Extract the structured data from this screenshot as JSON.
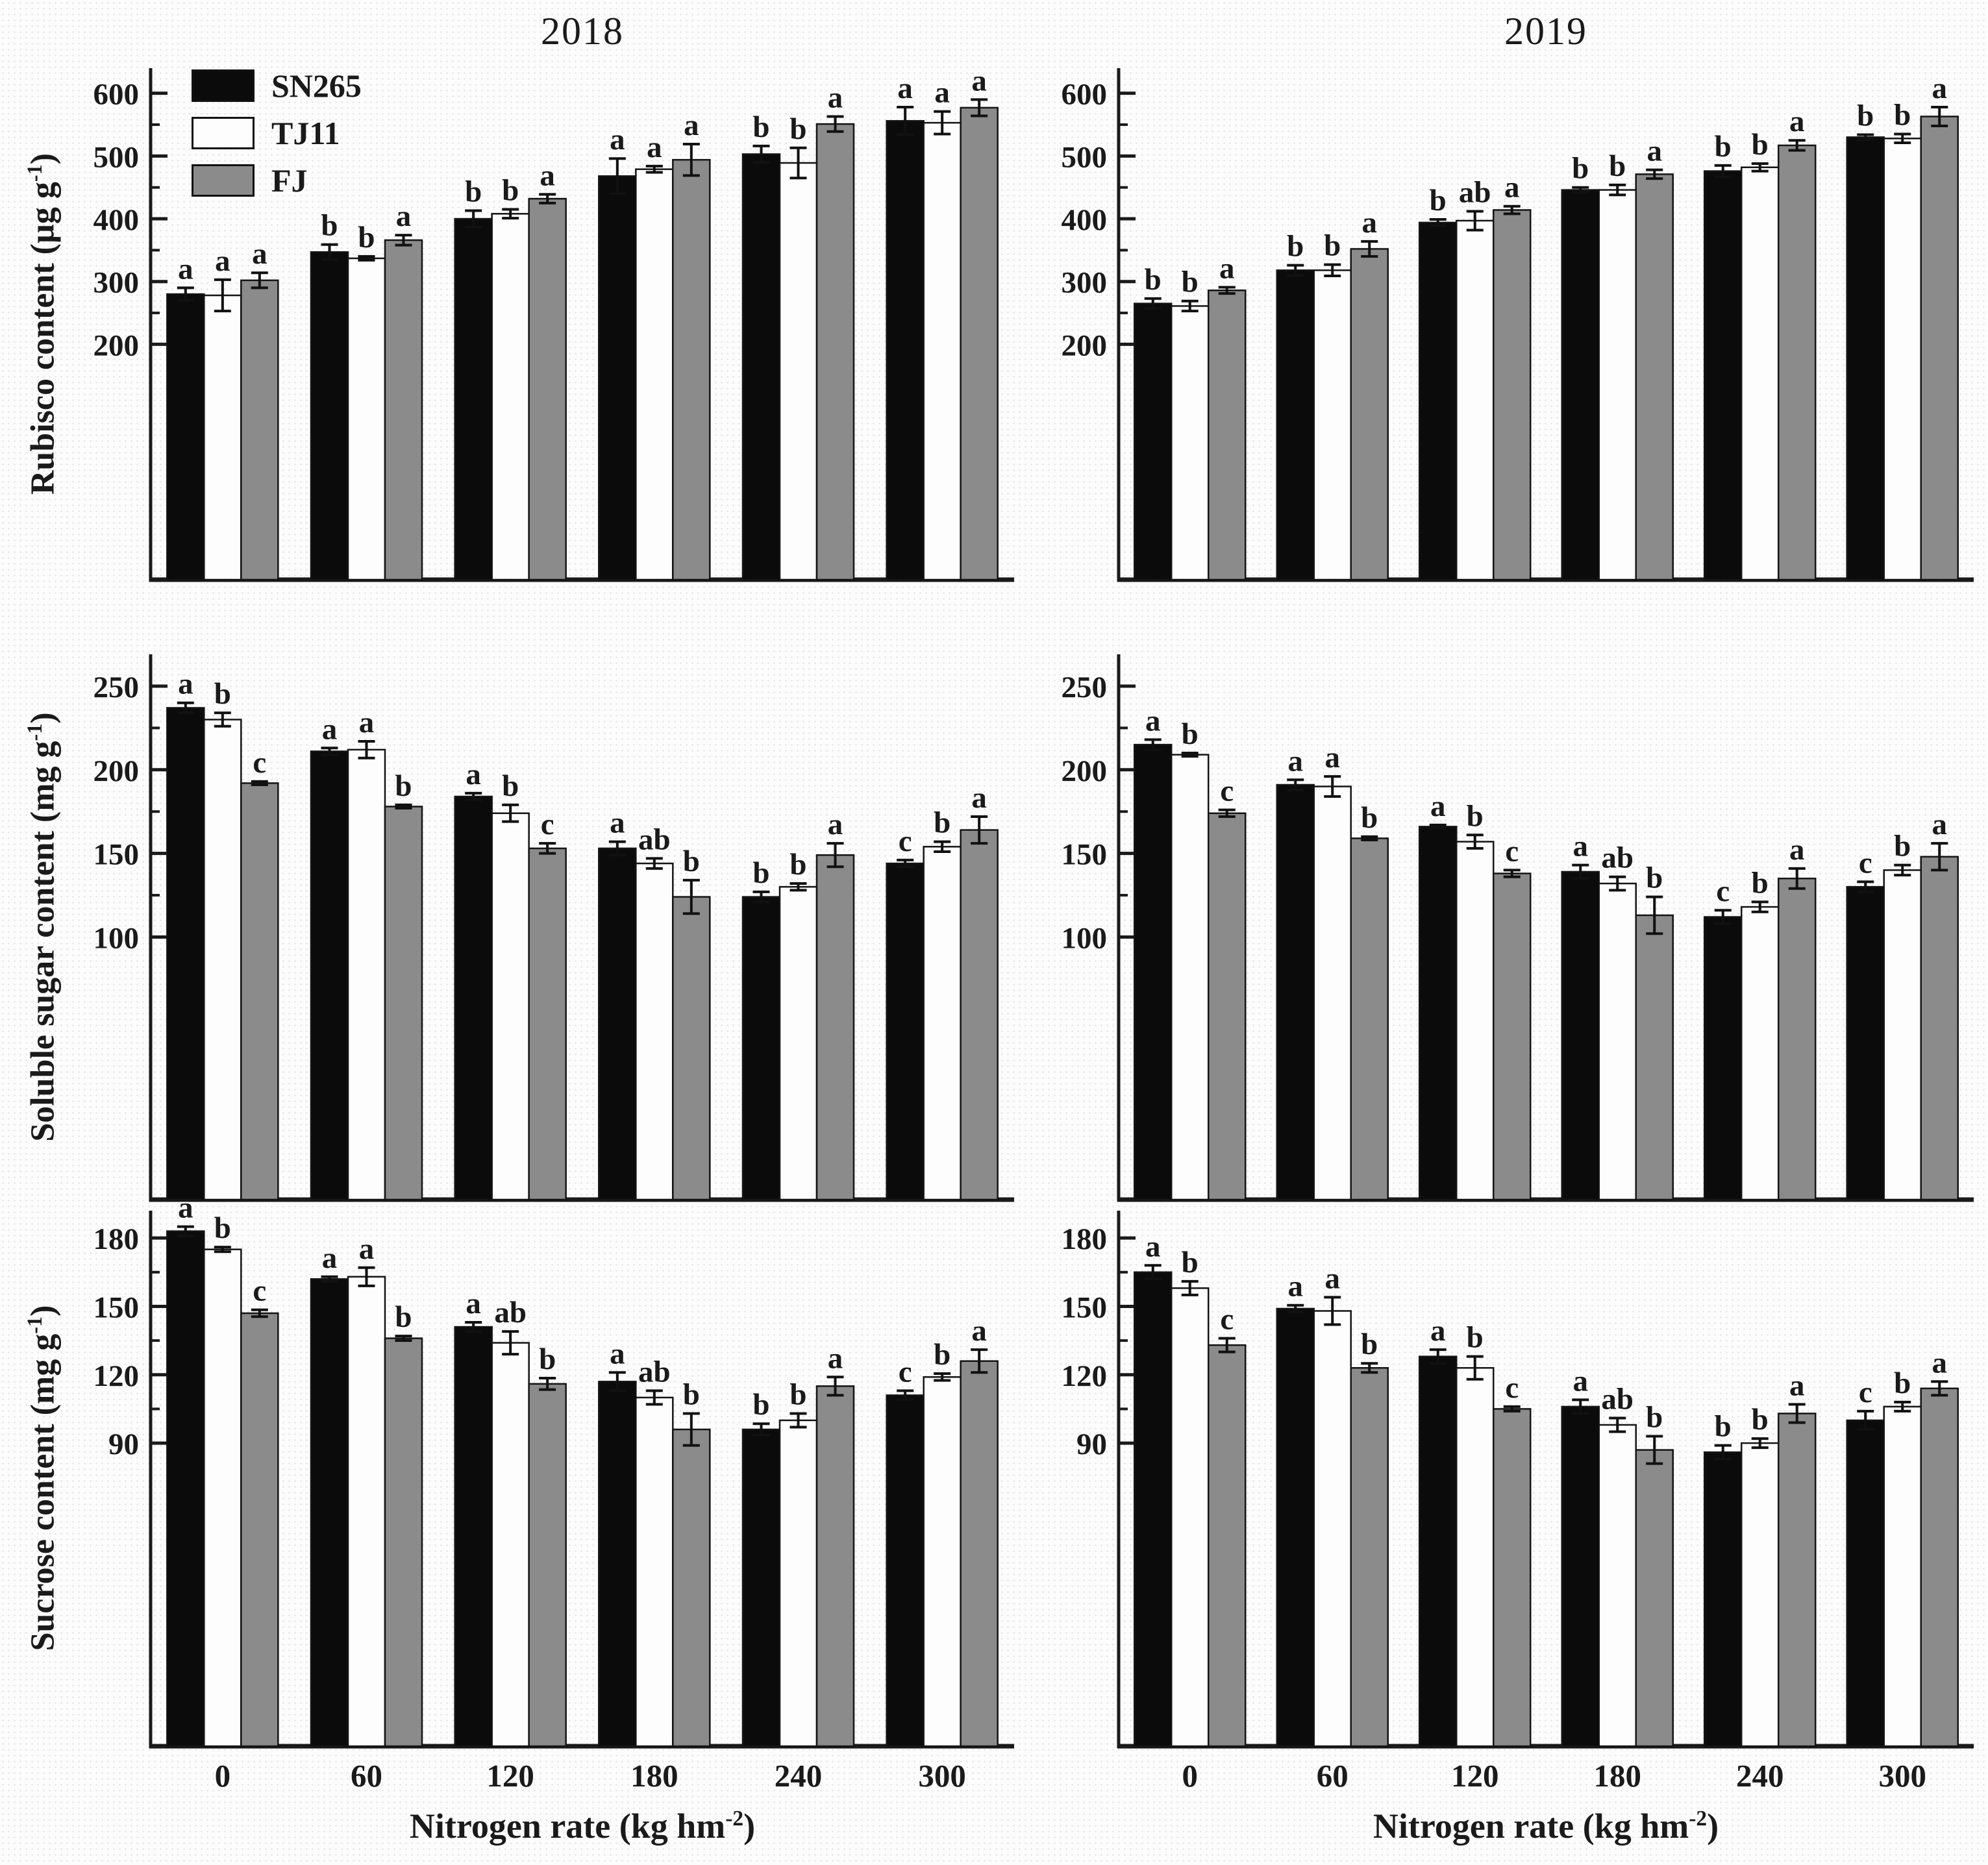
{
  "figure": {
    "titles": [
      "2018",
      "2019"
    ],
    "xlabel": {
      "pre": "Nitrogen rate (kg hm",
      "sup": "-2",
      "post": ")"
    },
    "x_categories": [
      "0",
      "60",
      "120",
      "180",
      "240",
      "300"
    ],
    "legend": [
      {
        "label": "SN265",
        "color": "#0b0b0b"
      },
      {
        "label": "TJ11",
        "color": "#fdfdfd"
      },
      {
        "label": "FJ",
        "color": "#8b8b8b"
      }
    ],
    "axis_color": "#1a1a1a",
    "background": "#fdfcfd"
  },
  "chart_data": [
    {
      "type": "bar",
      "year": "2018",
      "measure": "rubisco",
      "title": "2018",
      "ylabel": {
        "pre": "Rubisco content (µg g",
        "sup": "-1",
        "post": ")"
      },
      "categories": [
        "0",
        "60",
        "120",
        "180",
        "240",
        "300"
      ],
      "yticks": [
        200,
        300,
        400,
        500,
        600
      ],
      "yminor": [
        250,
        350,
        450,
        550
      ],
      "axis_range": [
        -175,
        640
      ],
      "series": [
        {
          "name": "SN265",
          "color": "#0b0b0b",
          "values": [
            280,
            347,
            400,
            468,
            503,
            556
          ],
          "errors": [
            10,
            12,
            13,
            28,
            13,
            22
          ],
          "letters": [
            "a",
            "b",
            "b",
            "a",
            "b",
            "a"
          ]
        },
        {
          "name": "TJ11",
          "color": "#fdfdfd",
          "values": [
            278,
            337,
            408,
            479,
            489,
            553
          ],
          "errors": [
            25,
            3,
            7,
            5,
            24,
            18
          ],
          "letters": [
            "a",
            "b",
            "b",
            "a",
            "b",
            "a"
          ]
        },
        {
          "name": "FJ",
          "color": "#8b8b8b",
          "values": [
            302,
            366,
            432,
            494,
            551,
            577
          ],
          "errors": [
            12,
            8,
            7,
            25,
            12,
            13
          ],
          "letters": [
            "a",
            "a",
            "a",
            "a",
            "a",
            "a"
          ]
        }
      ]
    },
    {
      "type": "bar",
      "year": "2019",
      "measure": "rubisco",
      "title": "2019",
      "ylabel": null,
      "categories": [
        "0",
        "60",
        "120",
        "180",
        "240",
        "300"
      ],
      "yticks": [
        200,
        300,
        400,
        500,
        600
      ],
      "yminor": [
        250,
        350,
        450,
        550
      ],
      "axis_range": [
        -175,
        640
      ],
      "series": [
        {
          "name": "SN265",
          "color": "#0b0b0b",
          "values": [
            265,
            318,
            394,
            446,
            476,
            530
          ],
          "errors": [
            8,
            8,
            5,
            4,
            9,
            4
          ],
          "letters": [
            "b",
            "b",
            "b",
            "b",
            "b",
            "b"
          ]
        },
        {
          "name": "TJ11",
          "color": "#fdfdfd",
          "values": [
            261,
            318,
            397,
            446,
            482,
            528
          ],
          "errors": [
            8,
            9,
            15,
            8,
            6,
            7
          ],
          "letters": [
            "b",
            "b",
            "ab",
            "b",
            "b",
            "b"
          ]
        },
        {
          "name": "FJ",
          "color": "#8b8b8b",
          "values": [
            286,
            352,
            414,
            471,
            517,
            563
          ],
          "errors": [
            5,
            12,
            6,
            7,
            8,
            15
          ],
          "letters": [
            "a",
            "a",
            "a",
            "a",
            "a",
            "a"
          ]
        }
      ]
    },
    {
      "type": "bar",
      "year": "2018",
      "measure": "soluble-sugar",
      "title": "2018",
      "ylabel": {
        "pre": "Soluble sugar content (mg g",
        "sup": "-1",
        "post": ")"
      },
      "categories": [
        "0",
        "60",
        "120",
        "180",
        "240",
        "300"
      ],
      "yticks": [
        100,
        150,
        200,
        250
      ],
      "yminor": [
        125,
        175,
        225
      ],
      "axis_range": [
        -57,
        269
      ],
      "series": [
        {
          "name": "SN265",
          "color": "#0b0b0b",
          "values": [
            237,
            211,
            184,
            153,
            124,
            144
          ],
          "errors": [
            3,
            2,
            2,
            4,
            3,
            2
          ],
          "letters": [
            "a",
            "a",
            "a",
            "a",
            "b",
            "c"
          ]
        },
        {
          "name": "TJ11",
          "color": "#fdfdfd",
          "values": [
            230,
            212,
            174,
            144,
            130,
            154
          ],
          "errors": [
            4,
            5,
            5,
            3,
            2,
            3
          ],
          "letters": [
            "b",
            "a",
            "b",
            "ab",
            "b",
            "b"
          ]
        },
        {
          "name": "FJ",
          "color": "#8b8b8b",
          "values": [
            192,
            178,
            153,
            124,
            149,
            164
          ],
          "errors": [
            1,
            1,
            3,
            10,
            7,
            8
          ],
          "letters": [
            "c",
            "b",
            "c",
            "b",
            "a",
            "a"
          ]
        }
      ]
    },
    {
      "type": "bar",
      "year": "2019",
      "measure": "soluble-sugar",
      "title": "2019",
      "ylabel": null,
      "categories": [
        "0",
        "60",
        "120",
        "180",
        "240",
        "300"
      ],
      "yticks": [
        100,
        150,
        200,
        250
      ],
      "yminor": [
        125,
        175,
        225
      ],
      "axis_range": [
        -57,
        269
      ],
      "series": [
        {
          "name": "SN265",
          "color": "#0b0b0b",
          "values": [
            215,
            191,
            166,
            139,
            112,
            130
          ],
          "errors": [
            3,
            3,
            1,
            4,
            4,
            3
          ],
          "letters": [
            "a",
            "a",
            "a",
            "a",
            "c",
            "c"
          ]
        },
        {
          "name": "TJ11",
          "color": "#fdfdfd",
          "values": [
            209,
            190,
            157,
            132,
            118,
            140
          ],
          "errors": [
            1,
            6,
            4,
            4,
            3,
            3
          ],
          "letters": [
            "b",
            "a",
            "b",
            "ab",
            "b",
            "b"
          ]
        },
        {
          "name": "FJ",
          "color": "#8b8b8b",
          "values": [
            174,
            159,
            138,
            113,
            135,
            148
          ],
          "errors": [
            2,
            1,
            2,
            11,
            6,
            8
          ],
          "letters": [
            "c",
            "b",
            "c",
            "b",
            "a",
            "a"
          ]
        }
      ]
    },
    {
      "type": "bar",
      "year": "2018",
      "measure": "sucrose",
      "title": "2018",
      "ylabel": {
        "pre": "Sucrose content (mg g",
        "sup": "-1",
        "post": ")"
      },
      "categories": [
        "0",
        "60",
        "120",
        "180",
        "240",
        "300"
      ],
      "yticks": [
        90,
        120,
        150,
        180
      ],
      "yminor": [
        105,
        135,
        165
      ],
      "axis_range": [
        -43,
        192
      ],
      "series": [
        {
          "name": "SN265",
          "color": "#0b0b0b",
          "values": [
            183,
            162,
            141,
            117,
            96,
            111
          ],
          "errors": [
            2,
            1,
            2,
            4,
            2.5,
            2
          ],
          "letters": [
            "a",
            "a",
            "a",
            "a",
            "b",
            "c"
          ]
        },
        {
          "name": "TJ11",
          "color": "#fdfdfd",
          "values": [
            175,
            163,
            134,
            110,
            100,
            119
          ],
          "errors": [
            1,
            4,
            5,
            3,
            3,
            1.5
          ],
          "letters": [
            "b",
            "a",
            "ab",
            "ab",
            "b",
            "b"
          ]
        },
        {
          "name": "FJ",
          "color": "#8b8b8b",
          "values": [
            147,
            136,
            116,
            96,
            115,
            126
          ],
          "errors": [
            1.5,
            1,
            2.5,
            7,
            4,
            5
          ],
          "letters": [
            "c",
            "b",
            "b",
            "b",
            "a",
            "a"
          ]
        }
      ]
    },
    {
      "type": "bar",
      "year": "2019",
      "measure": "sucrose",
      "title": "2019",
      "ylabel": null,
      "categories": [
        "0",
        "60",
        "120",
        "180",
        "240",
        "300"
      ],
      "yticks": [
        90,
        120,
        150,
        180
      ],
      "yminor": [
        105,
        135,
        165
      ],
      "axis_range": [
        -43,
        192
      ],
      "series": [
        {
          "name": "SN265",
          "color": "#0b0b0b",
          "values": [
            165,
            149,
            128,
            106,
            86,
            100
          ],
          "errors": [
            3,
            1.5,
            3,
            3,
            3,
            4
          ],
          "letters": [
            "a",
            "a",
            "a",
            "a",
            "b",
            "c"
          ]
        },
        {
          "name": "TJ11",
          "color": "#fdfdfd",
          "values": [
            158,
            148,
            123,
            98,
            90,
            106
          ],
          "errors": [
            3,
            6,
            5,
            3,
            2,
            2
          ],
          "letters": [
            "b",
            "a",
            "b",
            "ab",
            "b",
            "b"
          ]
        },
        {
          "name": "FJ",
          "color": "#8b8b8b",
          "values": [
            133,
            123,
            105,
            87,
            103,
            114
          ],
          "errors": [
            3,
            2,
            1,
            6,
            4,
            3
          ],
          "letters": [
            "c",
            "b",
            "c",
            "b",
            "a",
            "a"
          ]
        }
      ]
    }
  ]
}
